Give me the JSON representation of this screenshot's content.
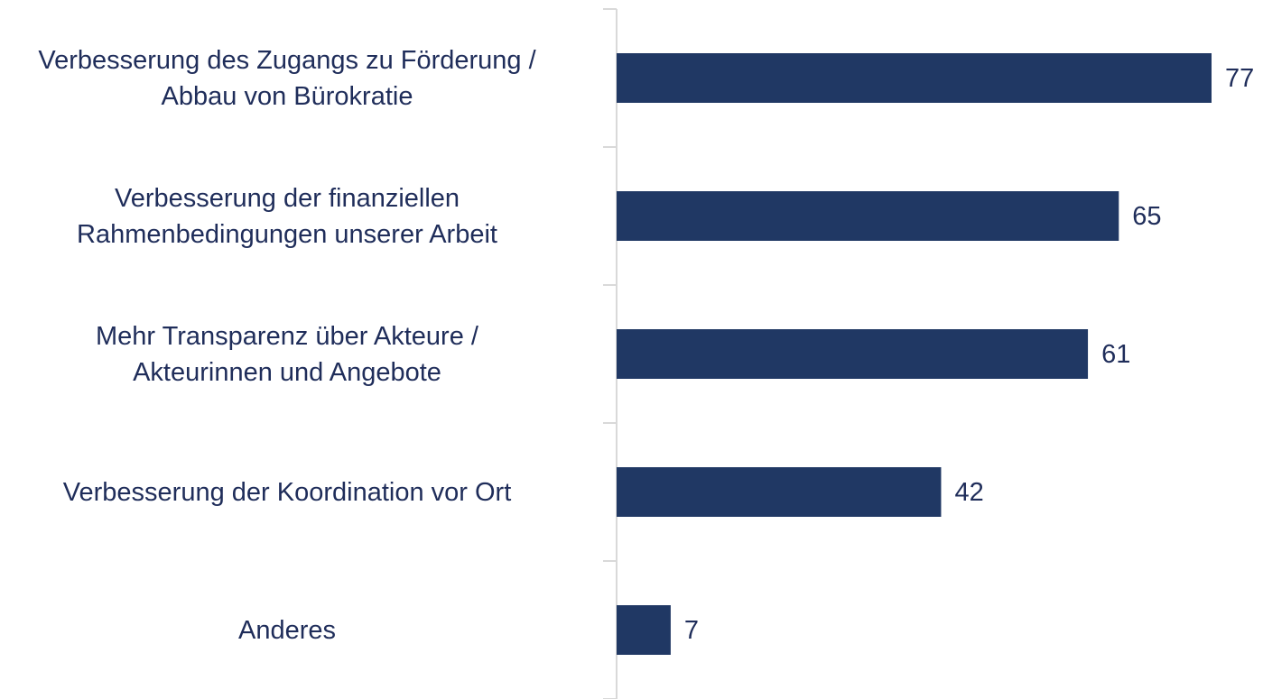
{
  "chart_data": {
    "type": "barh",
    "categories": [
      "Verbesserung des Zugangs zu Förderung /\nAbbau von Bürokratie",
      "Verbesserung der finanziellen\nRahmenbedingungen unserer Arbeit",
      "Mehr Transparenz über Akteure /\nAkteurinnen und Angebote",
      "Verbesserung der Koordination vor Ort",
      "Anderes"
    ],
    "values": [
      77,
      65,
      61,
      42,
      7
    ],
    "color": "#203864"
  }
}
